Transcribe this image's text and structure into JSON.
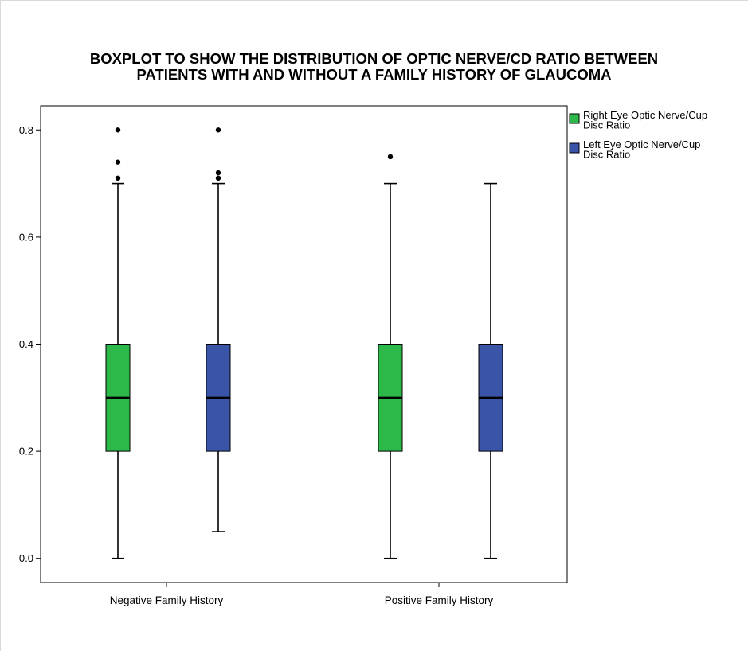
{
  "chart_data": {
    "type": "boxplot",
    "title_lines": [
      "BOXPLOT TO SHOW THE DISTRIBUTION OF OPTIC NERVE/CD RATIO BETWEEN",
      "PATIENTS WITH AND WITHOUT A FAMILY HISTORY OF GLAUCOMA"
    ],
    "xlabel": "",
    "ylabel": "",
    "ylim": [
      -0.045,
      0.845
    ],
    "yticks": [
      0.0,
      0.2,
      0.4,
      0.6,
      0.8
    ],
    "ytick_labels": [
      "0.0",
      "0.2",
      "0.4",
      "0.6",
      "0.8"
    ],
    "categories": [
      "Negative Family History",
      "Positive Family History"
    ],
    "legend_position": "right-top",
    "series": [
      {
        "name_lines": [
          "Right Eye Optic Nerve/Cup",
          "Disc Ratio"
        ],
        "color": "#2db84a",
        "boxes": [
          {
            "min": 0.0,
            "q1": 0.2,
            "median": 0.3,
            "q3": 0.4,
            "max": 0.7,
            "outliers": [
              0.71,
              0.74,
              0.8
            ]
          },
          {
            "min": 0.0,
            "q1": 0.2,
            "median": 0.3,
            "q3": 0.4,
            "max": 0.7,
            "outliers": [
              0.75
            ]
          }
        ]
      },
      {
        "name_lines": [
          "Left Eye Optic Nerve/Cup",
          "Disc Ratio"
        ],
        "color": "#3a55a8",
        "boxes": [
          {
            "min": 0.05,
            "q1": 0.2,
            "median": 0.3,
            "q3": 0.4,
            "max": 0.7,
            "outliers": [
              0.71,
              0.72,
              0.8
            ]
          },
          {
            "min": 0.0,
            "q1": 0.2,
            "median": 0.3,
            "q3": 0.4,
            "max": 0.7,
            "outliers": []
          }
        ]
      }
    ]
  }
}
